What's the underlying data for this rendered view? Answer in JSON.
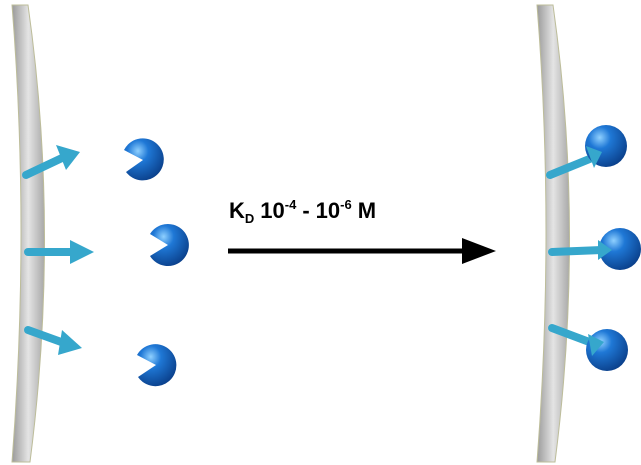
{
  "arrow": {
    "label": {
      "symbol": "K",
      "subscript": "D",
      "from_base": "10",
      "from_exponent": "-4",
      "separator": "-",
      "to_base": "10",
      "to_exponent": "-6",
      "unit": "M"
    }
  }
}
